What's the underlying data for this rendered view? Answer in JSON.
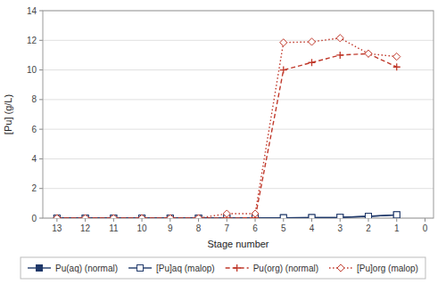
{
  "chart_data": {
    "type": "line",
    "x_label": "Stage number",
    "y_label": "[Pu] (g/L)",
    "x": [
      13,
      12,
      11,
      10,
      9,
      8,
      7,
      6,
      5,
      4,
      3,
      2,
      1
    ],
    "series": [
      {
        "name": "Pu(aq) (normal)",
        "color": "#1F3869",
        "marker": "square",
        "line_style": "solid",
        "values": [
          0.0,
          0.0,
          0.0,
          0.0,
          0.0,
          0.0,
          0.0,
          0.0,
          0.02,
          0.03,
          0.05,
          0.12,
          0.22
        ]
      },
      {
        "name": "[Pu]aq (malop)",
        "color": "#1F3869",
        "marker": "square-open",
        "line_style": "solid",
        "values": [
          0.0,
          0.0,
          0.0,
          0.0,
          0.0,
          0.0,
          0.0,
          0.0,
          0.02,
          0.03,
          0.05,
          0.12,
          0.22
        ]
      },
      {
        "name": "Pu(org) (normal)",
        "color": "#C0392B",
        "marker": "plus",
        "line_style": "dashed",
        "values": [
          0.0,
          0.0,
          0.0,
          0.0,
          0.0,
          0.0,
          0.0,
          0.02,
          10.0,
          10.5,
          11.0,
          11.1,
          10.2
        ]
      },
      {
        "name": "[Pu]org (malop)",
        "color": "#C0392B",
        "marker": "diamond-open",
        "line_style": "dotted",
        "values": [
          0.0,
          0.0,
          0.0,
          0.0,
          0.0,
          0.0,
          0.3,
          0.3,
          11.85,
          11.9,
          12.15,
          11.1,
          10.9
        ]
      }
    ],
    "xlim": [
      13.5,
      -0.3
    ],
    "xticks": [
      13,
      12,
      11,
      10,
      9,
      8,
      7,
      6,
      5,
      4,
      3,
      2,
      1,
      0
    ],
    "ylim": [
      0,
      14
    ],
    "yticks": [
      0,
      2,
      4,
      6,
      8,
      10,
      12,
      14
    ],
    "grid": true,
    "legend": "bottom"
  }
}
